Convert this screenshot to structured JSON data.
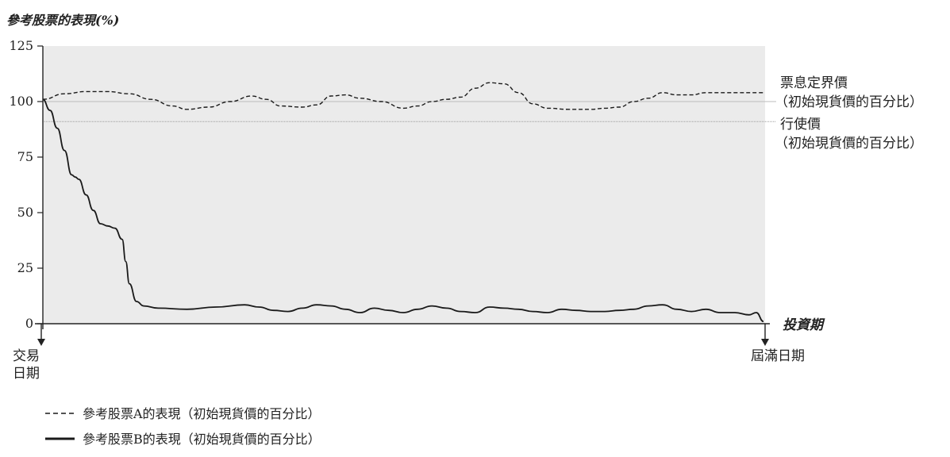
{
  "chart_data": {
    "type": "line",
    "title": "參考股票的表現(%)",
    "xlabel": "投資期",
    "ylim": [
      0,
      125
    ],
    "yticks": [
      0,
      25,
      50,
      75,
      100,
      125
    ],
    "ytick_labels": [
      "0",
      "25",
      "50",
      "75",
      "100",
      "125"
    ],
    "x_start_label": [
      "交易",
      "日期"
    ],
    "x_end_label": "屆滿日期",
    "x_range": [
      0,
      1
    ],
    "reference_lines": [
      {
        "value": 100,
        "label_lines": [
          "票息定界價",
          "（初始現貨價的百分比）"
        ]
      },
      {
        "value": 91,
        "label_lines": [
          "行使價",
          "（初始現貨價的百分比）"
        ]
      }
    ],
    "series": [
      {
        "name": "參考股票A的表現（初始現貨價的百分比）",
        "style": "dashed",
        "x": [
          0,
          0.03,
          0.06,
          0.09,
          0.12,
          0.15,
          0.18,
          0.2,
          0.23,
          0.26,
          0.29,
          0.31,
          0.33,
          0.36,
          0.38,
          0.4,
          0.42,
          0.44,
          0.47,
          0.5,
          0.52,
          0.54,
          0.56,
          0.58,
          0.6,
          0.62,
          0.64,
          0.66,
          0.68,
          0.7,
          0.73,
          0.76,
          0.78,
          0.8,
          0.82,
          0.84,
          0.86,
          0.88,
          0.9,
          0.92,
          0.95,
          1.0
        ],
        "values": [
          101,
          103.5,
          104.5,
          104.5,
          103.5,
          101,
          98,
          96.5,
          97.5,
          100,
          102.5,
          101,
          98,
          97.5,
          98.5,
          102.5,
          103,
          101.5,
          100,
          97,
          98,
          100,
          101,
          102,
          106,
          108.5,
          108,
          104,
          99,
          97,
          96.5,
          96.5,
          97,
          97.5,
          100,
          101.5,
          104,
          103,
          103,
          104,
          104,
          104
        ]
      },
      {
        "name": "參考股票B的表現（初始現貨價的百分比）",
        "style": "solid",
        "x": [
          0,
          0.01,
          0.02,
          0.03,
          0.04,
          0.045,
          0.05,
          0.06,
          0.07,
          0.08,
          0.09,
          0.1,
          0.11,
          0.115,
          0.12,
          0.13,
          0.14,
          0.16,
          0.2,
          0.24,
          0.28,
          0.3,
          0.32,
          0.34,
          0.36,
          0.38,
          0.4,
          0.42,
          0.44,
          0.46,
          0.48,
          0.5,
          0.52,
          0.54,
          0.56,
          0.58,
          0.6,
          0.62,
          0.64,
          0.66,
          0.68,
          0.7,
          0.72,
          0.74,
          0.76,
          0.78,
          0.8,
          0.82,
          0.84,
          0.86,
          0.88,
          0.9,
          0.92,
          0.94,
          0.96,
          0.98,
          0.99,
          1.0
        ],
        "values": [
          101,
          96,
          88,
          78,
          67,
          66,
          65,
          58,
          51,
          45,
          44,
          43,
          38,
          28,
          18,
          10,
          8,
          7,
          6.5,
          7.5,
          8.5,
          7.5,
          6,
          5.5,
          7,
          8.5,
          8,
          6.5,
          5,
          7,
          6,
          5,
          6.5,
          8,
          7,
          5.5,
          5,
          7.5,
          7,
          6.5,
          5.5,
          5,
          6.5,
          6,
          5.5,
          5.5,
          6,
          6.5,
          8,
          8.5,
          6.5,
          5.5,
          6.5,
          5,
          5,
          4,
          5,
          1
        ]
      }
    ]
  }
}
